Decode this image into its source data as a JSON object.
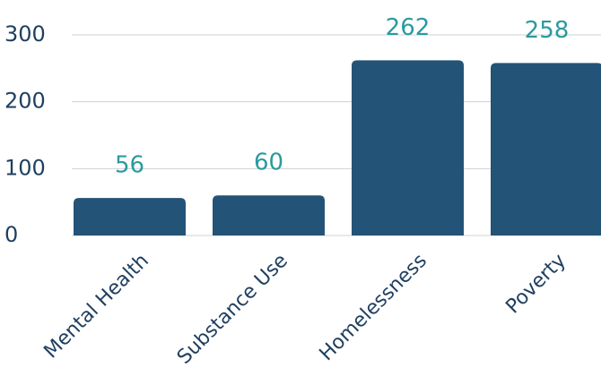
{
  "chart_data": {
    "type": "bar",
    "categories": [
      "Mental Health",
      "Substance Use",
      "Homelessness",
      "Poverty"
    ],
    "values": [
      56,
      60,
      262,
      258
    ],
    "color": "#245378",
    "ylim": [
      0,
      300
    ],
    "yticks": [
      0,
      100,
      200,
      300
    ],
    "grid": true
  }
}
